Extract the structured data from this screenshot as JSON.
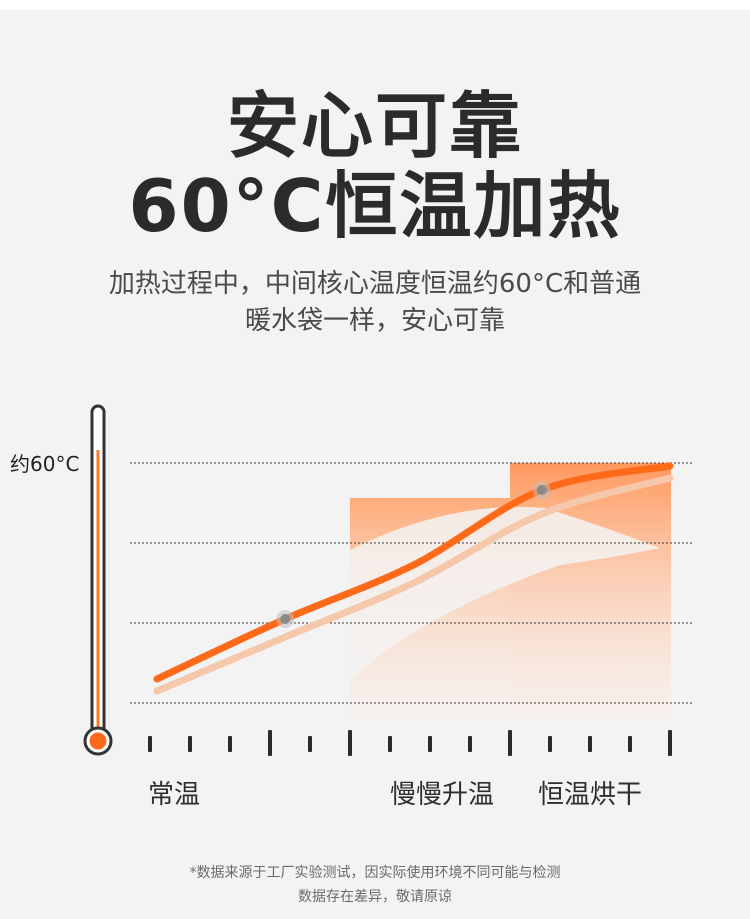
{
  "headline": {
    "line1": "安心可靠",
    "line2": "60°C恒温加热"
  },
  "subtitle": {
    "line1": "加热过程中，中间核心温度恒温约60°C和普通",
    "line2": "暖水袋一样，安心可靠"
  },
  "chart_data": {
    "type": "line",
    "y_mark_label": "约60°C",
    "categories": [
      "常温",
      "慢慢升温",
      "恒温烘干"
    ],
    "gridlines": 4,
    "series": [
      {
        "x": [
          0,
          0.25,
          0.5,
          0.75,
          1.0
        ],
        "values": [
          8,
          28,
          46,
          71,
          79
        ]
      },
      {
        "x": [
          0,
          0.25,
          0.5,
          0.75,
          1.0
        ],
        "values": [
          4,
          22,
          40,
          63,
          75
        ]
      }
    ],
    "ylim": [
      0,
      80
    ],
    "colors": {
      "primary": "#ff6a1a",
      "secondary": "#f5c7ab",
      "area": "#ff9e63",
      "marker": "#8a8a8a"
    }
  },
  "footnote": {
    "line1": "*数据来源于工厂实验测试，因实际使用环境不同可能与检测",
    "line2": "数据存在差异，敬请原谅"
  }
}
